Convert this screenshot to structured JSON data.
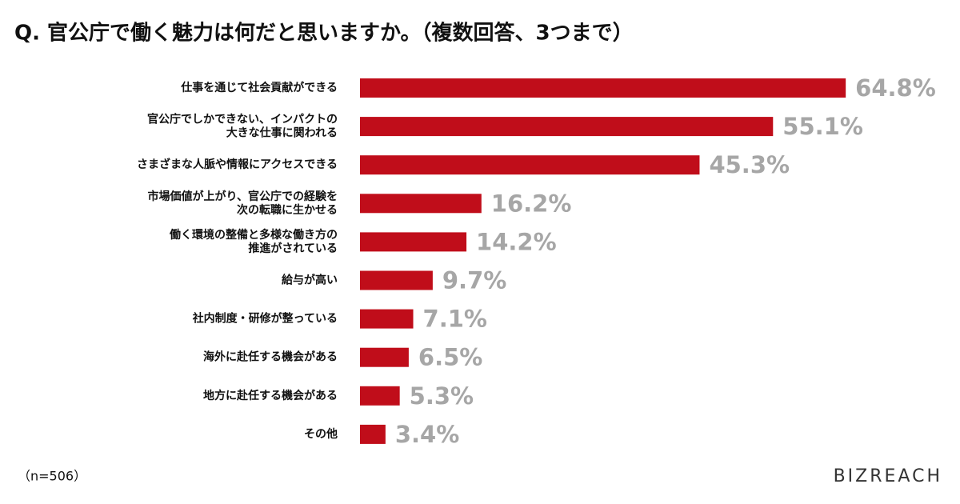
{
  "chart_data": {
    "type": "bar",
    "orientation": "horizontal",
    "title": "Q. 官公庁で働く魅力は何だと思いますか。（複数回答、3つまで）",
    "categories": [
      "仕事を通じて社会貢献ができる",
      "官公庁でしかできない、インパクトの\n大きな仕事に関われる",
      "さまざまな人脈や情報にアクセスできる",
      "市場価値が上がり、官公庁での経験を\n次の転職に生かせる",
      "働く環境の整備と多様な働き方の\n推進がされている",
      "給与が高い",
      "社内制度・研修が整っている",
      "海外に赴任する機会がある",
      "地方に赴任する機会がある",
      "その他"
    ],
    "values": [
      64.8,
      55.1,
      45.3,
      16.2,
      14.2,
      9.7,
      7.1,
      6.5,
      5.3,
      3.4
    ],
    "value_labels": [
      "64.8%",
      "55.1%",
      "45.3%",
      "16.2%",
      "14.2%",
      "9.7%",
      "7.1%",
      "6.5%",
      "5.3%",
      "3.4%"
    ],
    "color": "#c00d1a",
    "note": "（n=506）",
    "logo": "BIZREACH"
  }
}
